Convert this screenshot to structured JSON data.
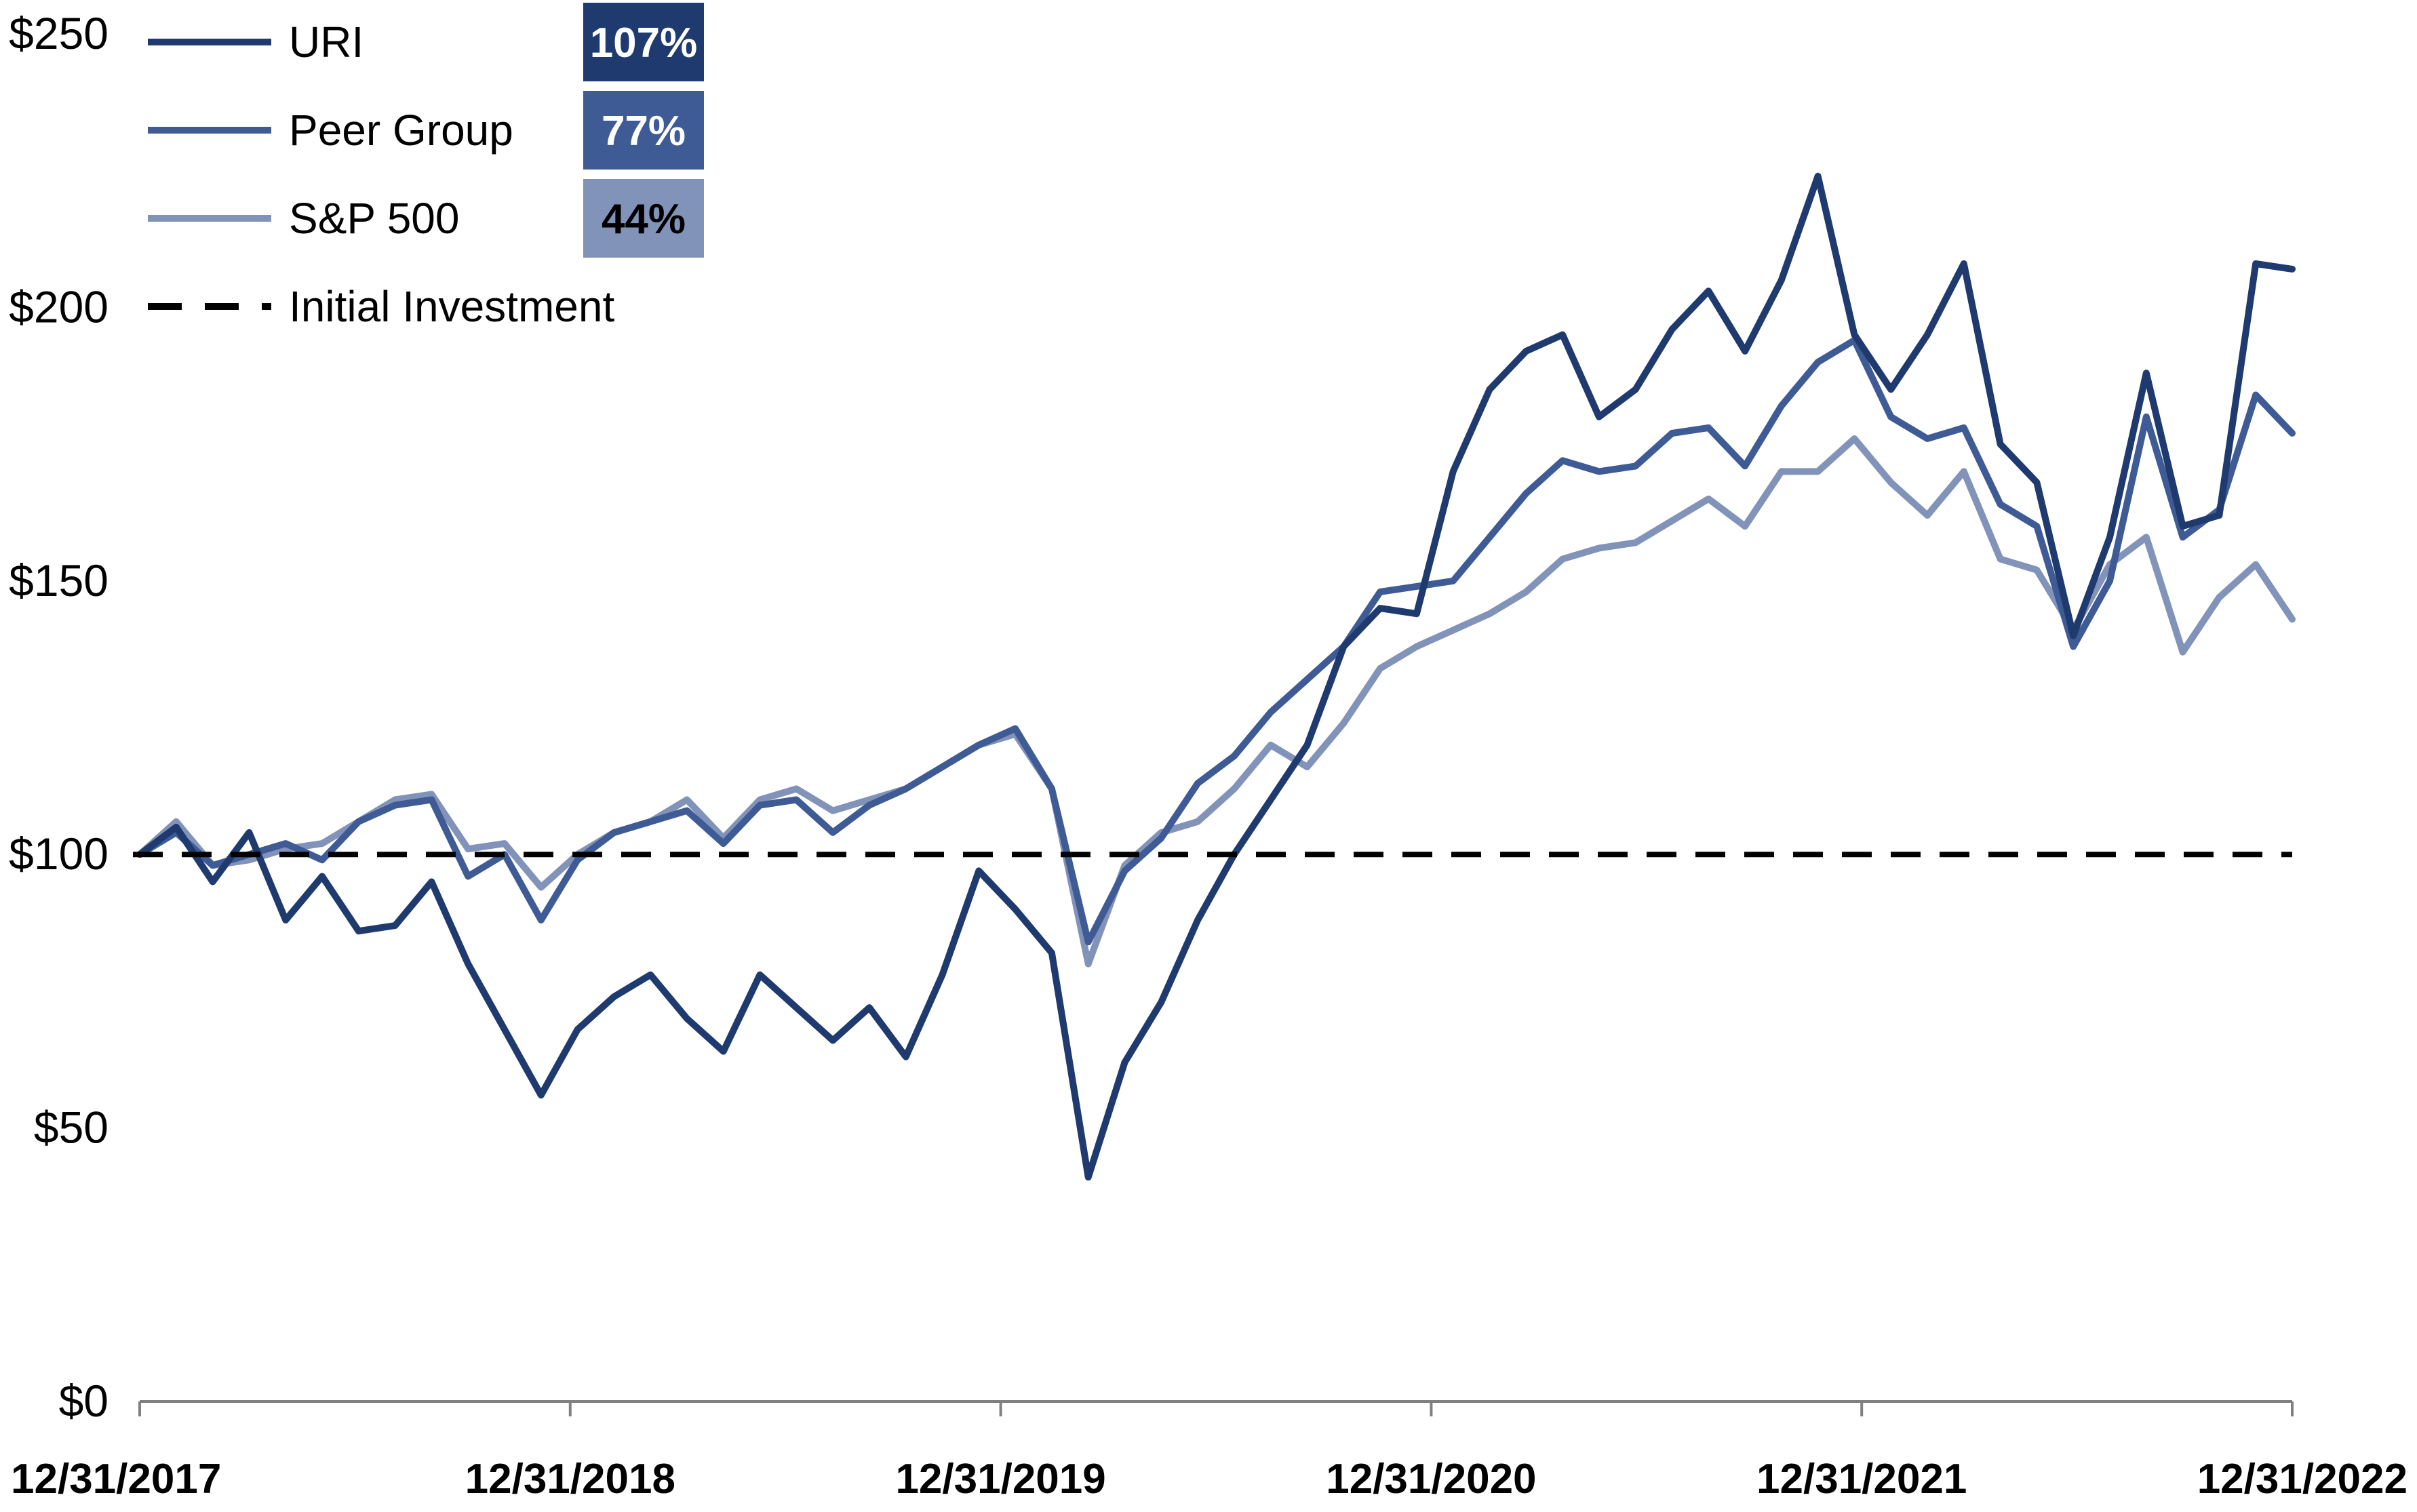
{
  "chart_data": {
    "type": "line",
    "x_ticks": [
      "12/31/2017",
      "12/31/2018",
      "12/31/2019",
      "12/31/2020",
      "12/31/2021",
      "12/31/2022"
    ],
    "y_ticks": [
      "$0",
      "$50",
      "$100",
      "$150",
      "$200",
      "$250"
    ],
    "ylim": [
      0,
      250
    ],
    "grid": false,
    "legend_position": "top-left",
    "series": [
      {
        "name": "URI",
        "color": "#1f3a6e",
        "badge": "107%",
        "badge_text_color": "#ffffff",
        "points": [
          [
            "12/31/2017",
            100
          ],
          [
            "02/2018",
            105
          ],
          [
            "03/2018",
            95
          ],
          [
            "04/2018",
            104
          ],
          [
            "05/2018",
            88
          ],
          [
            "06/2018",
            96
          ],
          [
            "07/2018",
            86
          ],
          [
            "08/2018",
            87
          ],
          [
            "09/2018",
            95
          ],
          [
            "10/2018",
            80
          ],
          [
            "11/2018",
            68
          ],
          [
            "12/31/2018",
            56
          ],
          [
            "01/2019",
            68
          ],
          [
            "02/2019",
            74
          ],
          [
            "03/2019",
            78
          ],
          [
            "04/2019",
            70
          ],
          [
            "05/2019",
            64
          ],
          [
            "06/2019",
            78
          ],
          [
            "07/2019",
            72
          ],
          [
            "08/2019",
            66
          ],
          [
            "09/2019",
            72
          ],
          [
            "10/2019",
            63
          ],
          [
            "11/2019",
            78
          ],
          [
            "12/31/2019",
            97
          ],
          [
            "01/2020",
            90
          ],
          [
            "02/2020",
            82
          ],
          [
            "03/2020",
            41
          ],
          [
            "04/2020",
            62
          ],
          [
            "05/2020",
            73
          ],
          [
            "06/2020",
            88
          ],
          [
            "07/2020",
            100
          ],
          [
            "08/2020",
            110
          ],
          [
            "09/2020",
            120
          ],
          [
            "10/2020",
            138
          ],
          [
            "11/2020",
            145
          ],
          [
            "12/31/2020",
            144
          ],
          [
            "01/2021",
            170
          ],
          [
            "02/2021",
            185
          ],
          [
            "03/2021",
            192
          ],
          [
            "04/2021",
            195
          ],
          [
            "05/2021",
            180
          ],
          [
            "06/2021",
            185
          ],
          [
            "07/2021",
            196
          ],
          [
            "08/2021",
            203
          ],
          [
            "09/2021",
            192
          ],
          [
            "10/2021",
            205
          ],
          [
            "11/2021",
            224
          ],
          [
            "12/31/2021",
            195
          ],
          [
            "01/2022",
            185
          ],
          [
            "02/2022",
            195
          ],
          [
            "03/2022",
            208
          ],
          [
            "04/2022",
            175
          ],
          [
            "05/2022",
            168
          ],
          [
            "06/2022",
            140
          ],
          [
            "07/2022",
            158
          ],
          [
            "08/2022",
            188
          ],
          [
            "09/2022",
            160
          ],
          [
            "10/2022",
            162
          ],
          [
            "11/2022",
            208
          ],
          [
            "12/31/2022",
            207
          ]
        ]
      },
      {
        "name": "Peer Group",
        "color": "#3f5b96",
        "badge": "77%",
        "badge_text_color": "#ffffff",
        "points": [
          [
            "12/31/2017",
            100
          ],
          [
            "02/2018",
            104
          ],
          [
            "03/2018",
            98
          ],
          [
            "04/2018",
            100
          ],
          [
            "05/2018",
            102
          ],
          [
            "06/2018",
            99
          ],
          [
            "07/2018",
            106
          ],
          [
            "08/2018",
            109
          ],
          [
            "09/2018",
            110
          ],
          [
            "10/2018",
            96
          ],
          [
            "11/2018",
            100
          ],
          [
            "12/31/2018",
            88
          ],
          [
            "01/2019",
            99
          ],
          [
            "02/2019",
            104
          ],
          [
            "03/2019",
            106
          ],
          [
            "04/2019",
            108
          ],
          [
            "05/2019",
            102
          ],
          [
            "06/2019",
            109
          ],
          [
            "07/2019",
            110
          ],
          [
            "08/2019",
            104
          ],
          [
            "09/2019",
            109
          ],
          [
            "10/2019",
            112
          ],
          [
            "11/2019",
            116
          ],
          [
            "12/31/2019",
            120
          ],
          [
            "01/2020",
            123
          ],
          [
            "02/2020",
            112
          ],
          [
            "03/2020",
            84
          ],
          [
            "04/2020",
            97
          ],
          [
            "05/2020",
            103
          ],
          [
            "06/2020",
            113
          ],
          [
            "07/2020",
            118
          ],
          [
            "08/2020",
            126
          ],
          [
            "09/2020",
            132
          ],
          [
            "10/2020",
            138
          ],
          [
            "11/2020",
            148
          ],
          [
            "12/31/2020",
            149
          ],
          [
            "01/2021",
            150
          ],
          [
            "02/2021",
            158
          ],
          [
            "03/2021",
            166
          ],
          [
            "04/2021",
            172
          ],
          [
            "05/2021",
            170
          ],
          [
            "06/2021",
            171
          ],
          [
            "07/2021",
            177
          ],
          [
            "08/2021",
            178
          ],
          [
            "09/2021",
            171
          ],
          [
            "10/2021",
            182
          ],
          [
            "11/2021",
            190
          ],
          [
            "12/31/2021",
            194
          ],
          [
            "01/2022",
            180
          ],
          [
            "02/2022",
            176
          ],
          [
            "03/2022",
            178
          ],
          [
            "04/2022",
            164
          ],
          [
            "05/2022",
            160
          ],
          [
            "06/2022",
            138
          ],
          [
            "07/2022",
            150
          ],
          [
            "08/2022",
            180
          ],
          [
            "09/2022",
            158
          ],
          [
            "10/2022",
            163
          ],
          [
            "11/2022",
            184
          ],
          [
            "12/31/2022",
            177
          ]
        ]
      },
      {
        "name": "S&P 500",
        "color": "#8293b9",
        "badge": "44%",
        "badge_text_color": "#000000",
        "points": [
          [
            "12/31/2017",
            100
          ],
          [
            "02/2018",
            106
          ],
          [
            "03/2018",
            98
          ],
          [
            "04/2018",
            99
          ],
          [
            "05/2018",
            101
          ],
          [
            "06/2018",
            102
          ],
          [
            "07/2018",
            106
          ],
          [
            "08/2018",
            110
          ],
          [
            "09/2018",
            111
          ],
          [
            "10/2018",
            101
          ],
          [
            "11/2018",
            102
          ],
          [
            "12/31/2018",
            94
          ],
          [
            "01/2019",
            100
          ],
          [
            "02/2019",
            104
          ],
          [
            "03/2019",
            106
          ],
          [
            "04/2019",
            110
          ],
          [
            "05/2019",
            103
          ],
          [
            "06/2019",
            110
          ],
          [
            "07/2019",
            112
          ],
          [
            "08/2019",
            108
          ],
          [
            "09/2019",
            110
          ],
          [
            "10/2019",
            112
          ],
          [
            "11/2019",
            116
          ],
          [
            "12/31/2019",
            120
          ],
          [
            "01/2020",
            122
          ],
          [
            "02/2020",
            112
          ],
          [
            "03/2020",
            80
          ],
          [
            "04/2020",
            98
          ],
          [
            "05/2020",
            104
          ],
          [
            "06/2020",
            106
          ],
          [
            "07/2020",
            112
          ],
          [
            "08/2020",
            120
          ],
          [
            "09/2020",
            116
          ],
          [
            "10/2020",
            124
          ],
          [
            "11/2020",
            134
          ],
          [
            "12/31/2020",
            138
          ],
          [
            "01/2021",
            141
          ],
          [
            "02/2021",
            144
          ],
          [
            "03/2021",
            148
          ],
          [
            "04/2021",
            154
          ],
          [
            "05/2021",
            156
          ],
          [
            "06/2021",
            157
          ],
          [
            "07/2021",
            161
          ],
          [
            "08/2021",
            165
          ],
          [
            "09/2021",
            160
          ],
          [
            "10/2021",
            170
          ],
          [
            "11/2021",
            170
          ],
          [
            "12/31/2021",
            176
          ],
          [
            "01/2022",
            168
          ],
          [
            "02/2022",
            162
          ],
          [
            "03/2022",
            170
          ],
          [
            "04/2022",
            154
          ],
          [
            "05/2022",
            152
          ],
          [
            "06/2022",
            141
          ],
          [
            "07/2022",
            153
          ],
          [
            "08/2022",
            158
          ],
          [
            "09/2022",
            137
          ],
          [
            "10/2022",
            147
          ],
          [
            "11/2022",
            153
          ],
          [
            "12/31/2022",
            143
          ]
        ]
      }
    ],
    "reference_line": {
      "name": "Initial Investment",
      "value": 100,
      "color": "#000000",
      "style": "dashed"
    }
  }
}
